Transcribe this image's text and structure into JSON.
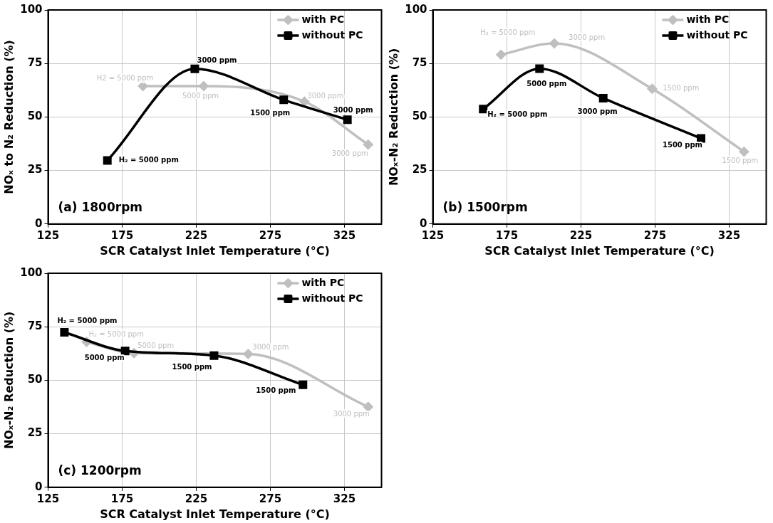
{
  "chart_data": [
    {
      "type": "line",
      "xlabel": "SCR Catalyst Inlet Temperature (°C)",
      "ylabel": "NOₓ to N₂ Reduction (%)",
      "xlim": [
        125,
        350
      ],
      "xticks": [
        125,
        175,
        225,
        275,
        325
      ],
      "ylim": [
        0,
        100
      ],
      "yticks": [
        0,
        25,
        50,
        75,
        100
      ],
      "grid": true,
      "legend": "top right",
      "line_style": "solid",
      "series": [
        {
          "name": "with PC",
          "color": "#bfbfbf",
          "marker": "diamond",
          "x": [
            189,
            230,
            298,
            341
          ],
          "values": [
            64.4,
            64.4,
            57.2,
            37.1
          ]
        },
        {
          "name": "without PC",
          "color": "#000000",
          "marker": "square",
          "x": [
            165,
            224,
            284,
            327
          ],
          "values": [
            29.7,
            72.5,
            58,
            48.7
          ]
        }
      ],
      "annotations": [
        "(a) 1800rpm",
        {
          "text": "H2 = 5000 ppm",
          "x": 189,
          "y": 64.4
        },
        {
          "text": "5000 ppm",
          "x": 230,
          "y": 64.4
        },
        {
          "text": "3000 ppm",
          "x": 298,
          "y": 57.2
        },
        {
          "text": "3000 ppm",
          "x": 341,
          "y": 37.1
        },
        {
          "text": "H₂ = 5000 ppm",
          "x": 165,
          "y": 29.7
        },
        {
          "text": "3000 ppm",
          "x": 224,
          "y": 72.5
        },
        {
          "text": "1500 ppm",
          "x": 284,
          "y": 58
        },
        {
          "text": "3000 ppm",
          "x": 327,
          "y": 48.7
        }
      ]
    },
    {
      "type": "line",
      "xlabel": "SCR Catalyst Inlet Temperature (°C)",
      "ylabel": "NOₓ-N₂ Reduction (%)",
      "xlim": [
        125,
        350
      ],
      "xticks": [
        125,
        175,
        225,
        275,
        325
      ],
      "ylim": [
        0,
        100
      ],
      "yticks": [
        0,
        25,
        50,
        75,
        100
      ],
      "grid": true,
      "legend": "top right",
      "line_style": "solid",
      "series": [
        {
          "name": "with PC",
          "color": "#bfbfbf",
          "marker": "diamond",
          "x": [
            171,
            207,
            273,
            335
          ],
          "values": [
            79.1,
            84.4,
            63.2,
            33.8
          ]
        },
        {
          "name": "without PC",
          "color": "#000000",
          "marker": "square",
          "x": [
            159,
            197,
            240,
            306
          ],
          "values": [
            53.7,
            72.6,
            58.8,
            40
          ]
        }
      ],
      "annotations": [
        "(b) 1500rpm",
        {
          "text": "H₂ = 5000 ppm",
          "x": 171,
          "y": 79.1
        },
        {
          "text": "3000 ppm",
          "x": 207,
          "y": 84.4
        },
        {
          "text": "1500 ppm",
          "x": 273,
          "y": 63.2
        },
        {
          "text": "1500 ppm",
          "x": 335,
          "y": 33.8
        },
        {
          "text": "H₂ = 5000 ppm",
          "x": 159,
          "y": 53.7
        },
        {
          "text": "5000 ppm",
          "x": 197,
          "y": 72.6
        },
        {
          "text": "3000 ppm",
          "x": 240,
          "y": 58.8
        },
        {
          "text": "1500 ppm",
          "x": 306,
          "y": 40
        }
      ]
    },
    {
      "type": "line",
      "xlabel": "SCR Catalyst Inlet Temperature (°C)",
      "ylabel": "NOₓ-N₂ Reduction (%)",
      "xlim": [
        125,
        350
      ],
      "xticks": [
        125,
        175,
        225,
        275,
        325
      ],
      "ylim": [
        0,
        100
      ],
      "yticks": [
        0,
        25,
        50,
        75,
        100
      ],
      "grid": true,
      "legend": "top right",
      "line_style": "solid",
      "series": [
        {
          "name": "with PC",
          "color": "#bfbfbf",
          "marker": "diamond",
          "x": [
            151,
            183,
            260,
            341
          ],
          "values": [
            67.9,
            62.7,
            62.3,
            37.6
          ]
        },
        {
          "name": "without PC",
          "color": "#000000",
          "marker": "square",
          "x": [
            136,
            177,
            237,
            297
          ],
          "values": [
            72.4,
            63.7,
            61.5,
            47.9
          ]
        }
      ],
      "annotations": [
        "(c) 1200rpm",
        {
          "text": "H₂ = 5000 ppm",
          "x": 151,
          "y": 67.9
        },
        {
          "text": "5000 ppm",
          "x": 183,
          "y": 62.7
        },
        {
          "text": "3000 ppm",
          "x": 260,
          "y": 62.3
        },
        {
          "text": "3000 ppm",
          "x": 341,
          "y": 37.6
        },
        {
          "text": "H₂ = 5000 ppm",
          "x": 136,
          "y": 72.4
        },
        {
          "text": "5000 ppm",
          "x": 177,
          "y": 63.7
        },
        {
          "text": "1500 ppm",
          "x": 237,
          "y": 61.5
        },
        {
          "text": "1500 ppm",
          "x": 297,
          "y": 47.9
        }
      ]
    }
  ]
}
